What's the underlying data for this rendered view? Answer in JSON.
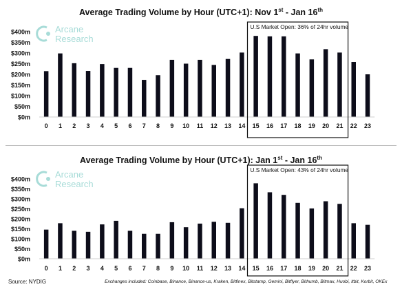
{
  "colors": {
    "bar": "#0d0d1a",
    "text": "#111111",
    "logo": "#a8dcd8",
    "box": "#111111"
  },
  "logo": {
    "line1": "Arcane",
    "line2": "Research"
  },
  "footer": {
    "source": "Source: NYDIG",
    "exchanges": "Exchanges included: Coinbase, Binance, Binance-us, Kraken, Bitfinex, Bitstamp, Gemini, Bitflyer, Bithumb, Bitmax, Huobi, Itbit, Korbit, OKEx"
  },
  "chart_data": [
    {
      "type": "bar",
      "title": "Average Trading Volume by Hour (UTC+1): Nov 1st - Jan 16th",
      "title_parts": {
        "prefix": "Average Trading Volume by Hour (UTC+1): Nov 1",
        "sup1": "st",
        "middle": " - Jan 16",
        "sup2": "th"
      },
      "categories": [
        "0",
        "1",
        "2",
        "3",
        "4",
        "5",
        "6",
        "7",
        "8",
        "9",
        "10",
        "11",
        "12",
        "13",
        "14",
        "15",
        "16",
        "17",
        "18",
        "19",
        "20",
        "21",
        "22",
        "23"
      ],
      "values": [
        215,
        298,
        252,
        216,
        248,
        230,
        230,
        174,
        196,
        268,
        250,
        268,
        244,
        272,
        302,
        380,
        378,
        378,
        298,
        270,
        318,
        302,
        258,
        200
      ],
      "ylim": [
        0,
        400
      ],
      "yticks": [
        0,
        50,
        100,
        150,
        200,
        250,
        300,
        350,
        400
      ],
      "ytick_labels": [
        "$0m",
        "$50m",
        "$100m",
        "$150m",
        "$200m",
        "$250m",
        "$300m",
        "$350m",
        "$400m"
      ],
      "xlabel": "",
      "ylabel": "",
      "annotation": {
        "text": "U.S Market Open: 36% of 24hr volume",
        "from": "15",
        "to": "21"
      }
    },
    {
      "type": "bar",
      "title": "Average Trading Volume by Hour (UTC+1): Jan 1st - Jan 16th",
      "title_parts": {
        "prefix": "Average Trading Volume by Hour (UTC+1): Jan 1",
        "sup1": "st",
        "middle": " - Jan 16",
        "sup2": "th"
      },
      "categories": [
        "0",
        "1",
        "2",
        "3",
        "4",
        "5",
        "6",
        "7",
        "8",
        "9",
        "10",
        "11",
        "12",
        "13",
        "14",
        "15",
        "16",
        "17",
        "18",
        "19",
        "20",
        "21",
        "22",
        "23"
      ],
      "values": [
        146,
        178,
        140,
        135,
        172,
        190,
        140,
        125,
        125,
        183,
        158,
        176,
        185,
        180,
        253,
        378,
        333,
        320,
        280,
        252,
        288,
        275,
        178,
        170
      ],
      "ylim": [
        0,
        400
      ],
      "yticks": [
        0,
        50,
        100,
        150,
        200,
        250,
        300,
        350,
        400
      ],
      "ytick_labels": [
        "$0m",
        "$50m",
        "$100m",
        "$150m",
        "$200m",
        "$250m",
        "$300m",
        "$350m",
        "$400m"
      ],
      "xlabel": "",
      "ylabel": "",
      "annotation": {
        "text": "U.S Market Open: 43% of 24hr volume",
        "from": "15",
        "to": "21"
      }
    }
  ]
}
